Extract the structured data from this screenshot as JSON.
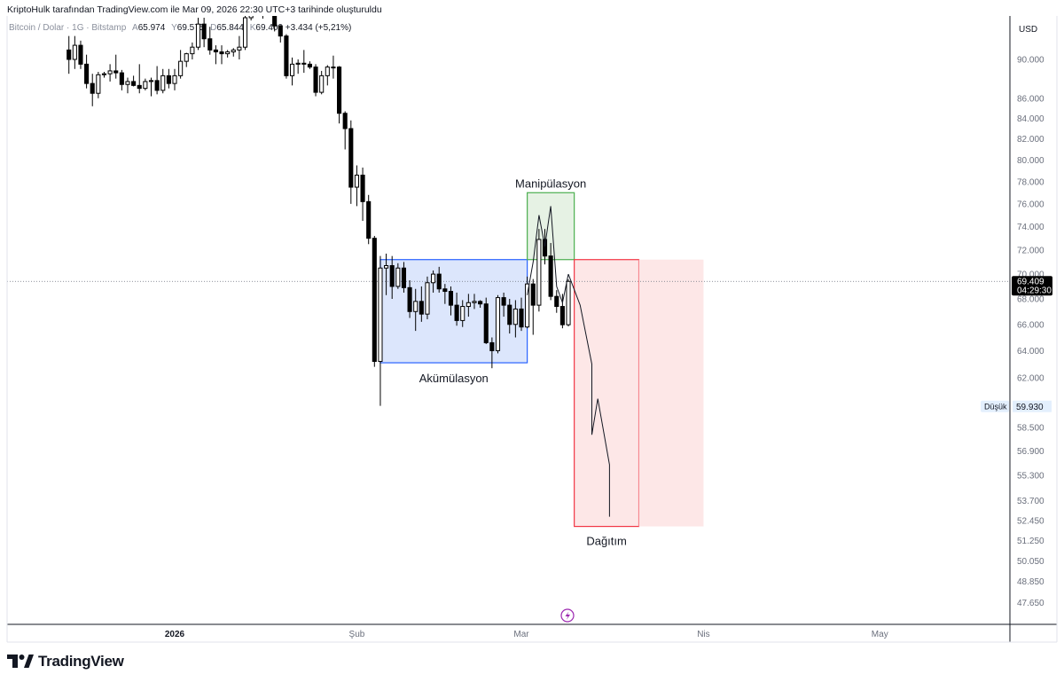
{
  "header": {
    "credit": "KriptoHulk tarafından TradingView.com ile Mar 09, 2026 22:30 UTC+3 tarihinde oluşturuldu"
  },
  "symbol": {
    "name": "Bitcoin / Dolar · 1G · Bitstamp",
    "open_label": "A",
    "open": "65.974",
    "high_label": "Y",
    "high": "69.575",
    "low_label": "D",
    "low": "65.844",
    "close_label": "K",
    "close": "69.409",
    "change": "+3.434 (+5,21%)"
  },
  "price_axis": {
    "currency": "USD",
    "ticks": [
      "90.000",
      "86.000",
      "84.000",
      "82.000",
      "80.000",
      "78.000",
      "76.000",
      "74.000",
      "72.000",
      "70.000",
      "68.000",
      "66.000",
      "64.000",
      "62.000",
      "58.500",
      "56.900",
      "55.300",
      "53.700",
      "52.450",
      "51.250",
      "50.050",
      "48.850",
      "47.650"
    ],
    "last_price": "69.409",
    "countdown": "04:29:30",
    "low_marker_label": "Düşük",
    "low_marker_value": "59.930"
  },
  "time_axis": {
    "ticks": [
      "2026",
      "Şub",
      "Mar",
      "Nis",
      "May"
    ]
  },
  "annotations": {
    "accumulation": "Akümülasyon",
    "manipulation": "Manipülasyon",
    "distribution": "Dağıtım"
  },
  "brand": {
    "name": "TradingView"
  },
  "colors": {
    "accumulation_box": "#2962ff",
    "manipulation_box": "#4caf50",
    "distribution_box": "#f23645",
    "candle_up": "#ffffff",
    "candle_down": "#000000"
  },
  "chart_data": {
    "type": "candlestick",
    "timeframe": "1D",
    "symbol": "Bitcoin / Dolar",
    "exchange": "Bitstamp",
    "currency": "USD",
    "y_scale": "log",
    "ylim": [
      46500,
      95000
    ],
    "x_start": "2025-12-14",
    "x_end": "2026-05-31",
    "ohlc": [
      [
        "2025-12-14",
        91000,
        92500,
        88500,
        90000
      ],
      [
        "2025-12-15",
        90000,
        92500,
        89000,
        91500
      ],
      [
        "2025-12-16",
        91500,
        92000,
        89000,
        89500
      ],
      [
        "2025-12-17",
        89500,
        90500,
        87000,
        87500
      ],
      [
        "2025-12-18",
        87500,
        88500,
        85200,
        86500
      ],
      [
        "2025-12-19",
        86500,
        88700,
        86000,
        88400
      ],
      [
        "2025-12-20",
        88400,
        88700,
        88100,
        88500
      ],
      [
        "2025-12-21",
        88500,
        89500,
        87700,
        88800
      ],
      [
        "2025-12-22",
        88800,
        90500,
        88000,
        88600
      ],
      [
        "2025-12-23",
        88600,
        88900,
        86800,
        87400
      ],
      [
        "2025-12-24",
        87400,
        88100,
        86500,
        87700
      ],
      [
        "2025-12-25",
        87700,
        88300,
        87200,
        87300
      ],
      [
        "2025-12-26",
        87300,
        89500,
        86500,
        87000
      ],
      [
        "2025-12-27",
        87000,
        88000,
        86800,
        87700
      ],
      [
        "2025-12-28",
        87700,
        88100,
        86200,
        87800
      ],
      [
        "2025-12-29",
        87800,
        89300,
        86400,
        86800
      ],
      [
        "2025-12-30",
        86800,
        89000,
        86500,
        88300
      ],
      [
        "2025-12-31",
        88300,
        89000,
        87000,
        87500
      ],
      [
        "2026-01-01",
        87500,
        89000,
        86800,
        88300
      ],
      [
        "2026-01-02",
        88300,
        91000,
        88000,
        89800
      ],
      [
        "2026-01-03",
        89800,
        90700,
        89200,
        90600
      ],
      [
        "2026-01-04",
        90600,
        91800,
        90000,
        91300
      ],
      [
        "2026-01-05",
        91300,
        94500,
        91000,
        93800
      ],
      [
        "2026-01-06",
        93800,
        94500,
        91300,
        92200
      ],
      [
        "2026-01-07",
        92200,
        93500,
        90500,
        91000
      ],
      [
        "2026-01-08",
        91000,
        91500,
        89500,
        90800
      ],
      [
        "2026-01-09",
        90800,
        91500,
        89500,
        90600
      ],
      [
        "2026-01-10",
        90600,
        91000,
        90200,
        90800
      ],
      [
        "2026-01-11",
        90800,
        91200,
        90300,
        91000
      ],
      [
        "2026-01-12",
        91000,
        92500,
        90000,
        91300
      ],
      [
        "2026-01-13",
        91300,
        94700,
        91000,
        94500
      ],
      [
        "2026-01-14",
        94500,
        97700,
        94200,
        96900
      ],
      [
        "2026-01-15",
        96900,
        97200,
        95000,
        95500
      ],
      [
        "2026-01-16",
        95500,
        95800,
        94400,
        95200
      ],
      [
        "2026-01-17",
        95200,
        95600,
        94800,
        95100
      ],
      [
        "2026-01-18",
        95100,
        95500,
        93000,
        93600
      ],
      [
        "2026-01-19",
        93600,
        93700,
        91800,
        92500
      ],
      [
        "2026-01-20",
        92500,
        92700,
        88000,
        88300
      ],
      [
        "2026-01-21",
        88300,
        90200,
        87300,
        89500
      ],
      [
        "2026-01-22",
        89500,
        90000,
        88500,
        89600
      ],
      [
        "2026-01-23",
        89600,
        91000,
        88600,
        89500
      ],
      [
        "2026-01-24",
        89500,
        89800,
        89000,
        89200
      ],
      [
        "2026-01-25",
        89200,
        89500,
        86200,
        86600
      ],
      [
        "2026-01-26",
        86600,
        88800,
        86400,
        88300
      ],
      [
        "2026-01-27",
        88300,
        89400,
        87300,
        89200
      ],
      [
        "2026-01-28",
        89200,
        90400,
        88000,
        89200
      ],
      [
        "2026-01-29",
        89200,
        89300,
        83500,
        84500
      ],
      [
        "2026-01-30",
        84500,
        84700,
        81000,
        83000
      ],
      [
        "2026-01-31",
        83000,
        83800,
        76000,
        77500
      ],
      [
        "2026-02-01",
        77500,
        79500,
        75800,
        78600
      ],
      [
        "2026-02-02",
        78600,
        79300,
        74500,
        76200
      ],
      [
        "2026-02-03",
        76200,
        76800,
        72500,
        73000
      ],
      [
        "2026-02-04",
        73000,
        73200,
        62800,
        63200
      ],
      [
        "2026-02-05",
        63200,
        71500,
        60000,
        70500
      ],
      [
        "2026-02-06",
        70500,
        71700,
        68300,
        70700
      ],
      [
        "2026-02-07",
        70700,
        71500,
        68000,
        69000
      ],
      [
        "2026-02-08",
        69000,
        70900,
        68800,
        70500
      ],
      [
        "2026-02-09",
        70500,
        71000,
        68500,
        68900
      ],
      [
        "2026-02-10",
        68900,
        69500,
        66500,
        67000
      ],
      [
        "2026-02-11",
        67000,
        68800,
        65500,
        67800
      ],
      [
        "2026-02-12",
        67800,
        69000,
        66200,
        66800
      ],
      [
        "2026-02-13",
        66800,
        69800,
        66400,
        69300
      ],
      [
        "2026-02-14",
        69300,
        70300,
        68500,
        70000
      ],
      [
        "2026-02-15",
        70000,
        70600,
        68500,
        68800
      ],
      [
        "2026-02-16",
        68800,
        69200,
        67600,
        68600
      ],
      [
        "2026-02-17",
        68600,
        69000,
        66700,
        67500
      ],
      [
        "2026-02-18",
        67500,
        68500,
        65900,
        66300
      ],
      [
        "2026-02-19",
        66300,
        67900,
        65800,
        67400
      ],
      [
        "2026-02-20",
        67400,
        68400,
        66600,
        67700
      ],
      [
        "2026-02-21",
        67700,
        68400,
        67200,
        67800
      ],
      [
        "2026-02-22",
        67800,
        67900,
        67300,
        67600
      ],
      [
        "2026-02-23",
        67600,
        68100,
        64500,
        64600
      ],
      [
        "2026-02-24",
        64600,
        65000,
        62700,
        64000
      ],
      [
        "2026-02-25",
        64000,
        68300,
        63800,
        68100
      ],
      [
        "2026-02-26",
        68100,
        68500,
        66600,
        67500
      ],
      [
        "2026-02-27",
        67500,
        68000,
        65300,
        66000
      ],
      [
        "2026-02-28",
        66000,
        67900,
        65000,
        67200
      ],
      [
        "2026-03-01",
        67200,
        68100,
        65500,
        65800
      ],
      [
        "2026-03-02",
        65800,
        69800,
        65700,
        69200
      ],
      [
        "2026-03-03",
        69200,
        69600,
        65200,
        67500
      ],
      [
        "2026-03-04",
        67500,
        73800,
        67000,
        72900
      ],
      [
        "2026-03-05",
        72900,
        73800,
        70800,
        71500
      ],
      [
        "2026-03-06",
        71500,
        72600,
        67900,
        68200
      ],
      [
        "2026-03-07",
        68200,
        68700,
        66900,
        67400
      ],
      [
        "2026-03-08",
        67400,
        68400,
        65700,
        65974
      ],
      [
        "2026-03-09",
        65974,
        69575,
        65844,
        69409
      ]
    ],
    "boxes": [
      {
        "label": "Akümülasyon",
        "from": "2026-02-05",
        "to": "2026-03-02",
        "price_high": 71200,
        "price_low": 63100
      },
      {
        "label": "Manipülasyon",
        "from": "2026-03-02",
        "to": "2026-03-10",
        "price_high": 77000,
        "price_low": 71200
      },
      {
        "label": "Dağıtım",
        "from": "2026-03-10",
        "to": "2026-03-21",
        "price_high": 71200,
        "price_low": 52100
      },
      {
        "label": "",
        "from": "2026-03-21",
        "to": "2026-04-01",
        "price_high": 71200,
        "price_low": 52100
      }
    ],
    "manipulation_path": [
      [
        "2026-03-02",
        68300
      ],
      [
        "2026-03-03",
        71000
      ],
      [
        "2026-03-04",
        75000
      ],
      [
        "2026-03-05",
        72300
      ],
      [
        "2026-03-05",
        72300
      ],
      [
        "2026-03-06",
        75800
      ],
      [
        "2026-03-07",
        69000
      ],
      [
        "2026-03-08",
        67700
      ],
      [
        "2026-03-09",
        70000
      ]
    ],
    "projection_path": [
      [
        "2026-03-09",
        70000
      ],
      [
        "2026-03-11",
        67500
      ],
      [
        "2026-03-13",
        63000
      ],
      [
        "2026-03-13",
        58000
      ],
      [
        "2026-03-14",
        60500
      ],
      [
        "2026-03-16",
        56000
      ],
      [
        "2026-03-16",
        52700
      ]
    ],
    "last_price": 69409,
    "low_marker": 59930,
    "price_ticks": [
      90000,
      86000,
      84000,
      82000,
      80000,
      78000,
      76000,
      74000,
      72000,
      70000,
      68000,
      66000,
      64000,
      62000,
      58500,
      56900,
      55300,
      53700,
      52450,
      51250,
      50050,
      48850,
      47650
    ],
    "time_ticks": [
      {
        "label": "2026",
        "date": "2026-01-01"
      },
      {
        "label": "Şub",
        "date": "2026-02-01"
      },
      {
        "label": "Mar",
        "date": "2026-03-01"
      },
      {
        "label": "Nis",
        "date": "2026-04-01"
      },
      {
        "label": "May",
        "date": "2026-05-01"
      }
    ]
  }
}
